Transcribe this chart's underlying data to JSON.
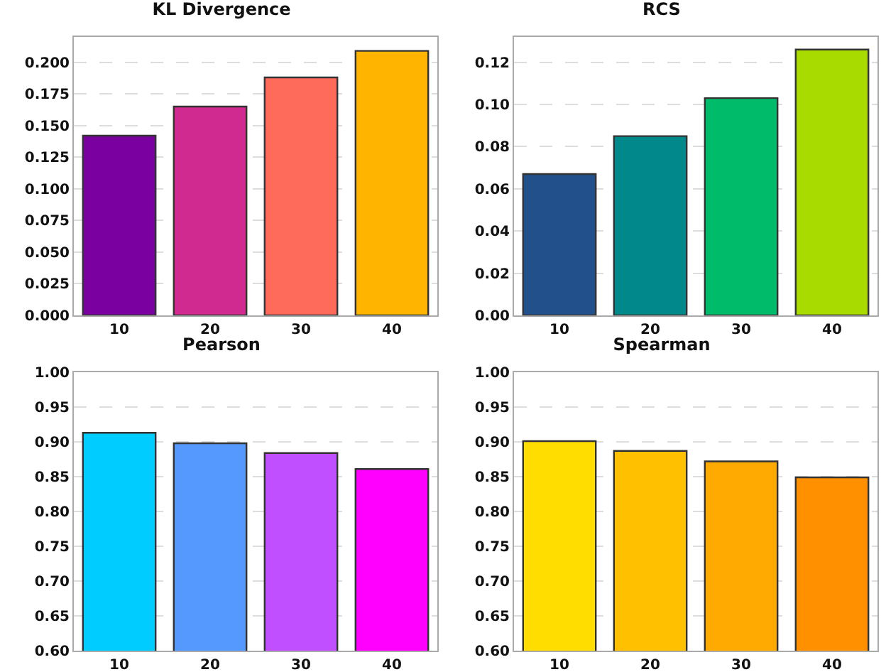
{
  "chart_data": [
    {
      "type": "bar",
      "title": "KL Divergence",
      "categories": [
        "10",
        "20",
        "30",
        "40"
      ],
      "values": [
        0.142,
        0.165,
        0.188,
        0.209
      ],
      "colors": [
        "#7b00a0",
        "#d02a90",
        "#ff6b5a",
        "#ffb400"
      ],
      "ylim": [
        0,
        0.22
      ],
      "yticks": [
        {
          "value": 0,
          "label": "0.000"
        },
        {
          "value": 0.025,
          "label": "0.025"
        },
        {
          "value": 0.05,
          "label": "0.050"
        },
        {
          "value": 0.075,
          "label": "0.075"
        },
        {
          "value": 0.1,
          "label": "0.100"
        },
        {
          "value": 0.125,
          "label": "0.125"
        },
        {
          "value": 0.15,
          "label": "0.150"
        },
        {
          "value": 0.175,
          "label": "0.175"
        },
        {
          "value": 0.2,
          "label": "0.200"
        }
      ],
      "grid": "y"
    },
    {
      "type": "bar",
      "title": "RCS",
      "categories": [
        "10",
        "20",
        "30",
        "40"
      ],
      "values": [
        0.067,
        0.085,
        0.103,
        0.126
      ],
      "colors": [
        "#22508a",
        "#00888a",
        "#00bb6a",
        "#a8dc00"
      ],
      "ylim": [
        0,
        0.132
      ],
      "yticks": [
        {
          "value": 0,
          "label": "0.00"
        },
        {
          "value": 0.02,
          "label": "0.02"
        },
        {
          "value": 0.04,
          "label": "0.04"
        },
        {
          "value": 0.06,
          "label": "0.06"
        },
        {
          "value": 0.08,
          "label": "0.08"
        },
        {
          "value": 0.1,
          "label": "0.10"
        },
        {
          "value": 0.12,
          "label": "0.12"
        }
      ],
      "grid": "y"
    },
    {
      "type": "bar",
      "title": "Pearson",
      "categories": [
        "10",
        "20",
        "30",
        "40"
      ],
      "values": [
        0.913,
        0.898,
        0.884,
        0.861
      ],
      "colors": [
        "#00ccff",
        "#5599ff",
        "#c050ff",
        "#ff00ff"
      ],
      "ylim": [
        0.6,
        1.0
      ],
      "yticks": [
        {
          "value": 0.6,
          "label": "0.60"
        },
        {
          "value": 0.65,
          "label": "0.65"
        },
        {
          "value": 0.7,
          "label": "0.70"
        },
        {
          "value": 0.75,
          "label": "0.75"
        },
        {
          "value": 0.8,
          "label": "0.80"
        },
        {
          "value": 0.85,
          "label": "0.85"
        },
        {
          "value": 0.9,
          "label": "0.90"
        },
        {
          "value": 0.95,
          "label": "0.95"
        },
        {
          "value": 1.0,
          "label": "1.00"
        }
      ],
      "grid": "y"
    },
    {
      "type": "bar",
      "title": "Spearman",
      "categories": [
        "10",
        "20",
        "30",
        "40"
      ],
      "values": [
        0.901,
        0.887,
        0.872,
        0.849
      ],
      "colors": [
        "#ffdd00",
        "#ffc000",
        "#ffaa00",
        "#ff9000"
      ],
      "ylim": [
        0.6,
        1.0
      ],
      "yticks": [
        {
          "value": 0.6,
          "label": "0.60"
        },
        {
          "value": 0.65,
          "label": "0.65"
        },
        {
          "value": 0.7,
          "label": "0.70"
        },
        {
          "value": 0.75,
          "label": "0.75"
        },
        {
          "value": 0.8,
          "label": "0.80"
        },
        {
          "value": 0.85,
          "label": "0.85"
        },
        {
          "value": 0.9,
          "label": "0.90"
        },
        {
          "value": 0.95,
          "label": "0.95"
        },
        {
          "value": 1.0,
          "label": "1.00"
        }
      ],
      "grid": "y"
    }
  ]
}
